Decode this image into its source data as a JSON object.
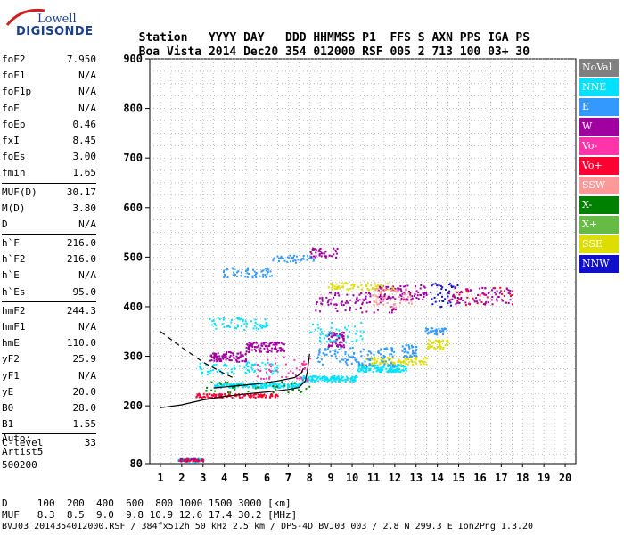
{
  "logo": {
    "line1": "Lowell",
    "line2": "DIGISONDE"
  },
  "header": {
    "labels": [
      "Station",
      "YYYY",
      "DAY",
      "DDD",
      "HHMMSS",
      "P1",
      "FFS",
      "S",
      "AXN",
      "PPS",
      "IGA",
      "PS"
    ],
    "values": [
      "Boa Vista",
      "2014",
      "Dec20",
      "354",
      "012000",
      "RSF",
      "005",
      "2",
      "713",
      "100",
      "03+",
      "30"
    ]
  },
  "params": {
    "group1": [
      {
        "name": "foF2",
        "value": "7.950"
      },
      {
        "name": "foF1",
        "value": "N/A"
      },
      {
        "name": "foF1p",
        "value": "N/A"
      },
      {
        "name": "foE",
        "value": "N/A"
      },
      {
        "name": "foEp",
        "value": "0.46"
      },
      {
        "name": "fxI",
        "value": "8.45"
      },
      {
        "name": "foEs",
        "value": "3.00"
      },
      {
        "name": "fmin",
        "value": "1.65"
      }
    ],
    "group2": [
      {
        "name": "MUF(D)",
        "value": "30.17"
      },
      {
        "name": "M(D)",
        "value": "3.80"
      },
      {
        "name": "D",
        "value": "N/A"
      }
    ],
    "group3": [
      {
        "name": "h`F",
        "value": "216.0"
      },
      {
        "name": "h`F2",
        "value": "216.0"
      },
      {
        "name": "h`E",
        "value": "N/A"
      },
      {
        "name": "h`Es",
        "value": "95.0"
      }
    ],
    "group4": [
      {
        "name": "hmF2",
        "value": "244.3"
      },
      {
        "name": "hmF1",
        "value": "N/A"
      },
      {
        "name": "hmE",
        "value": "110.0"
      },
      {
        "name": "yF2",
        "value": "25.9"
      },
      {
        "name": "yF1",
        "value": "N/A"
      },
      {
        "name": "yE",
        "value": "20.0"
      },
      {
        "name": "B0",
        "value": "28.0"
      },
      {
        "name": "B1",
        "value": "1.55"
      }
    ],
    "group5": [
      {
        "name": "C-level",
        "value": "33"
      }
    ]
  },
  "auto": {
    "line1": "Auto:",
    "line2": "Artist5",
    "line3": "500200"
  },
  "legend": [
    {
      "label": "NoVal",
      "color": "#808080"
    },
    {
      "label": "NNE",
      "color": "#00e0ff"
    },
    {
      "label": "E",
      "color": "#3399ff"
    },
    {
      "label": "W",
      "color": "#a000a0"
    },
    {
      "label": "Vo-",
      "color": "#ff33aa"
    },
    {
      "label": "Vo+",
      "color": "#ff0033"
    },
    {
      "label": "SSW",
      "color": "#ff9999"
    },
    {
      "label": "X-",
      "color": "#008000"
    },
    {
      "label": "X+",
      "color": "#66bb44"
    },
    {
      "label": "SSE",
      "color": "#dddd00"
    },
    {
      "label": "NNW",
      "color": "#1010cc"
    }
  ],
  "mufTable": {
    "dLabel": "D",
    "dValues": [
      "100",
      "200",
      "400",
      "600",
      "800",
      "1000",
      "1500",
      "3000",
      "[km]"
    ],
    "mufLabel": "MUF",
    "mufValues": [
      "8.3",
      "8.5",
      "9.0",
      "9.8",
      "10.9",
      "12.6",
      "17.4",
      "30.2",
      "[MHz]"
    ]
  },
  "footer": "BVJ03_2014354012000.RSF / 384fx512h 50 kHz 2.5 km / DPS-4D BVJ03 003 / 2.8 N 299.3 E Ion2Png 1.3.20",
  "chart_data": {
    "type": "scatter",
    "xlim": [
      0.5,
      20.5
    ],
    "ylim": [
      80,
      900
    ],
    "xticks": [
      1,
      2,
      3,
      4,
      5,
      6,
      7,
      8,
      9,
      10,
      11,
      12,
      13,
      14,
      15,
      16,
      17,
      18,
      19,
      20
    ],
    "yticks": [
      80,
      200,
      300,
      400,
      500,
      600,
      700,
      800,
      900
    ],
    "grid": true,
    "legend_position": "right",
    "clusters": [
      {
        "dir": "NNE",
        "x": [
          1.8,
          3.0
        ],
        "y": [
          85,
          92
        ],
        "n": 60
      },
      {
        "dir": "W",
        "x": [
          1.8,
          3.0
        ],
        "y": [
          86,
          92
        ],
        "n": 30
      },
      {
        "dir": "Vo+",
        "x": [
          1.8,
          3.0
        ],
        "y": [
          86,
          91
        ],
        "n": 20
      },
      {
        "dir": "Vo+",
        "x": [
          2.6,
          6.5
        ],
        "y": [
          218,
          226
        ],
        "n": 120
      },
      {
        "dir": "NNE",
        "x": [
          3.5,
          7.6
        ],
        "y": [
          238,
          248
        ],
        "n": 200
      },
      {
        "dir": "NNE",
        "x": [
          7.6,
          10.2
        ],
        "y": [
          250,
          262
        ],
        "n": 150
      },
      {
        "dir": "NNE",
        "x": [
          10.2,
          12.5
        ],
        "y": [
          270,
          285
        ],
        "n": 140
      },
      {
        "dir": "SSE",
        "x": [
          10.5,
          13.5
        ],
        "y": [
          285,
          300
        ],
        "n": 100
      },
      {
        "dir": "E",
        "x": [
          12.3,
          13.0
        ],
        "y": [
          300,
          325
        ],
        "n": 40
      },
      {
        "dir": "SSE",
        "x": [
          13.5,
          14.5
        ],
        "y": [
          315,
          335
        ],
        "n": 50
      },
      {
        "dir": "E",
        "x": [
          13.4,
          14.4
        ],
        "y": [
          345,
          360
        ],
        "n": 40
      },
      {
        "dir": "W",
        "x": [
          3.3,
          5.0
        ],
        "y": [
          290,
          310
        ],
        "n": 90
      },
      {
        "dir": "W",
        "x": [
          5.0,
          6.8
        ],
        "y": [
          310,
          330
        ],
        "n": 90
      },
      {
        "dir": "W",
        "x": [
          8.8,
          9.6
        ],
        "y": [
          320,
          350
        ],
        "n": 60
      },
      {
        "dir": "NNE",
        "x": [
          3.2,
          6.0
        ],
        "y": [
          355,
          380
        ],
        "n": 60
      },
      {
        "dir": "E",
        "x": [
          8.3,
          12.0
        ],
        "y": [
          280,
          320
        ],
        "n": 120
      },
      {
        "dir": "W",
        "x": [
          8.2,
          12.0
        ],
        "y": [
          390,
          430
        ],
        "n": 90
      },
      {
        "dir": "W",
        "x": [
          11.2,
          13.5
        ],
        "y": [
          415,
          445
        ],
        "n": 80
      },
      {
        "dir": "SSW",
        "x": [
          10.8,
          12.8
        ],
        "y": [
          400,
          440
        ],
        "n": 60
      },
      {
        "dir": "NNW",
        "x": [
          13.6,
          15.0
        ],
        "y": [
          400,
          450
        ],
        "n": 40
      },
      {
        "dir": "W",
        "x": [
          14.5,
          17.5
        ],
        "y": [
          405,
          440
        ],
        "n": 70
      },
      {
        "dir": "Vo+",
        "x": [
          14.5,
          17.5
        ],
        "y": [
          405,
          440
        ],
        "n": 30
      },
      {
        "dir": "E",
        "x": [
          3.8,
          6.2
        ],
        "y": [
          460,
          480
        ],
        "n": 60
      },
      {
        "dir": "E",
        "x": [
          6.2,
          8.2
        ],
        "y": [
          490,
          505
        ],
        "n": 40
      },
      {
        "dir": "W",
        "x": [
          8.0,
          9.3
        ],
        "y": [
          500,
          520
        ],
        "n": 40
      },
      {
        "dir": "SSE",
        "x": [
          8.8,
          12.0
        ],
        "y": [
          435,
          450
        ],
        "n": 60
      },
      {
        "dir": "NNE",
        "x": [
          2.8,
          6.5
        ],
        "y": [
          265,
          290
        ],
        "n": 80
      },
      {
        "dir": "X-",
        "x": [
          3.0,
          8.0
        ],
        "y": [
          228,
          250
        ],
        "n": 40
      },
      {
        "dir": "Vo-",
        "x": [
          5.5,
          8.0
        ],
        "y": [
          250,
          300
        ],
        "n": 50
      },
      {
        "dir": "NNE",
        "x": [
          8.0,
          10.5
        ],
        "y": [
          330,
          370
        ],
        "n": 50
      }
    ],
    "traces": [
      {
        "style": "solid",
        "x": [
          1.0,
          2.0,
          3.0,
          4.0,
          5.0,
          6.0,
          7.0,
          7.5,
          7.8,
          7.9,
          8.0
        ],
        "y": [
          196,
          202,
          212,
          219,
          224,
          228,
          233,
          237,
          250,
          270,
          305
        ]
      },
      {
        "style": "solid",
        "x": [
          3.5,
          4.5,
          5.5,
          6.5,
          7.3,
          7.6,
          7.7
        ],
        "y": [
          236,
          240,
          244,
          250,
          257,
          265,
          275
        ]
      },
      {
        "style": "dashed",
        "x": [
          1.0,
          2.0,
          3.0,
          4.0,
          4.5
        ],
        "y": [
          350,
          318,
          288,
          265,
          255
        ]
      }
    ]
  }
}
